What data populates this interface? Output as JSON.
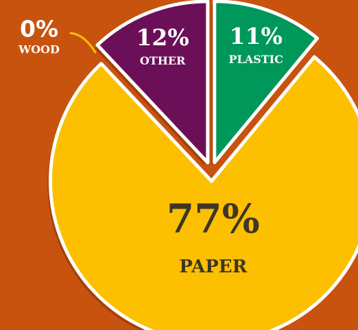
{
  "chart_data": {
    "type": "pie",
    "slices": [
      {
        "name": "PLASTIC",
        "value": 11,
        "label": "11%",
        "color": "#00985a"
      },
      {
        "name": "PAPER",
        "value": 77,
        "label": "77%",
        "color": "#fcc000"
      },
      {
        "name": "WOOD",
        "value": 0,
        "label": "0%",
        "color": "#fcc000"
      },
      {
        "name": "OTHER",
        "value": 12,
        "label": "12%",
        "color": "#6b1058"
      }
    ]
  },
  "colors": {
    "background": "#c8530f",
    "outline": "#ffffff",
    "shadow": "#a4410a",
    "label_light": "#ffffff",
    "label_dark": "#3d3526"
  }
}
